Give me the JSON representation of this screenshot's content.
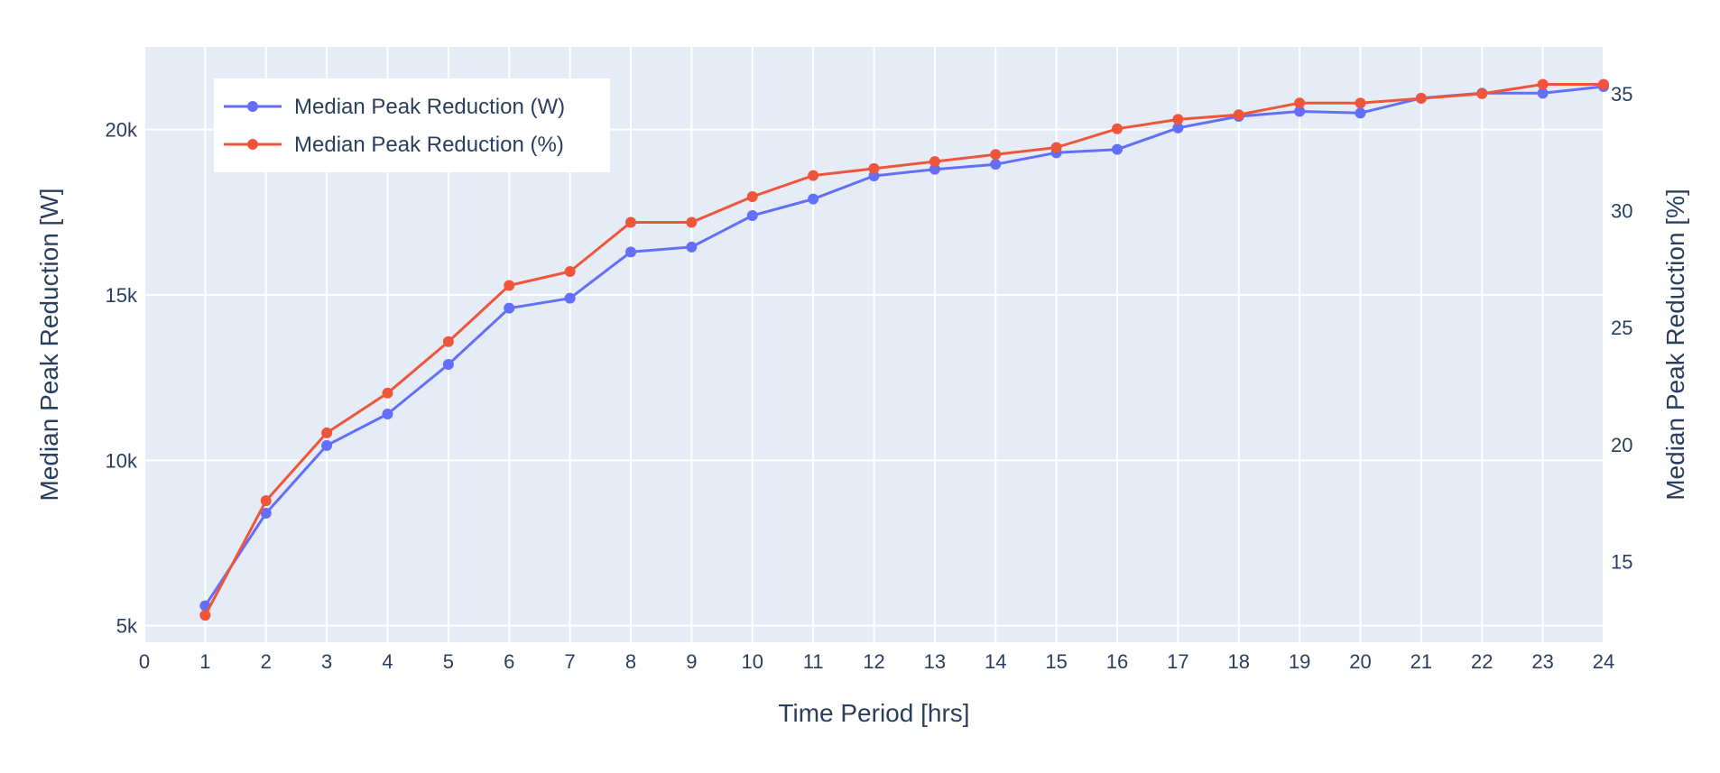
{
  "chart_data": {
    "type": "line",
    "xlabel": "Time Period [hrs]",
    "ylabel": "Median Peak Reduction [W]",
    "y2label": "Median Peak Reduction [%]",
    "xlim": [
      0,
      24
    ],
    "ylim": [
      4500,
      22500
    ],
    "y2lim": [
      11.55,
      37.0
    ],
    "x_ticks": [
      0,
      1,
      2,
      3,
      4,
      5,
      6,
      7,
      8,
      9,
      10,
      11,
      12,
      13,
      14,
      15,
      16,
      17,
      18,
      19,
      20,
      21,
      22,
      23,
      24
    ],
    "y_ticks": [
      5000,
      10000,
      15000,
      20000
    ],
    "y_tick_labels": [
      "5k",
      "10k",
      "15k",
      "20k"
    ],
    "y2_ticks": [
      15,
      20,
      25,
      30,
      35
    ],
    "y2_tick_labels": [
      "15",
      "20",
      "25",
      "30",
      "35"
    ],
    "grid": true,
    "legend_position": "top-left",
    "x": [
      1,
      2,
      3,
      4,
      5,
      6,
      7,
      8,
      9,
      10,
      11,
      12,
      13,
      14,
      15,
      16,
      17,
      18,
      19,
      20,
      21,
      22,
      23,
      24
    ],
    "series": [
      {
        "name": "Median Peak Reduction (W)",
        "axis": "left",
        "color": "#636efa",
        "values": [
          5600,
          8400,
          10450,
          11400,
          12900,
          14600,
          14900,
          16300,
          16450,
          17400,
          17900,
          18600,
          18800,
          18950,
          19300,
          19400,
          20050,
          20400,
          20550,
          20500,
          20950,
          21100,
          21100,
          21300
        ]
      },
      {
        "name": "Median Peak Reduction (%)",
        "axis": "right",
        "color": "#ef553b",
        "values": [
          12.7,
          17.6,
          20.5,
          22.2,
          24.4,
          26.8,
          27.4,
          29.5,
          29.5,
          30.6,
          31.5,
          31.8,
          32.1,
          32.4,
          32.7,
          33.5,
          33.9,
          34.1,
          34.6,
          34.6,
          34.8,
          35.0,
          35.4,
          35.4
        ]
      }
    ]
  }
}
